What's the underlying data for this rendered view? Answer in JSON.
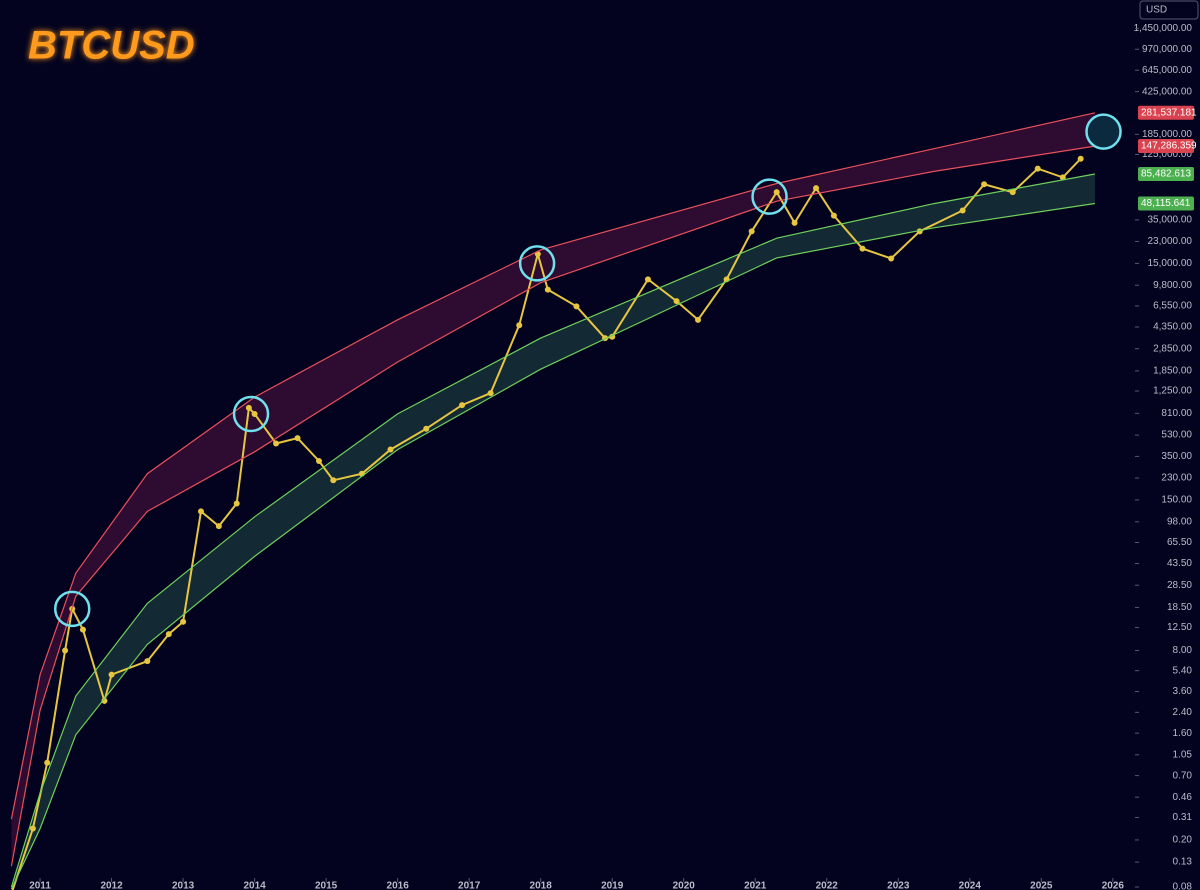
{
  "chart_data": {
    "type": "line",
    "title": "BTCUSD",
    "currency": "USD",
    "log_scale": true,
    "grid": false,
    "xlim": [
      2010.44,
      2026.31
    ],
    "xticks": [
      2011,
      2012,
      2013,
      2014,
      2015,
      2016,
      2017,
      2018,
      2019,
      2020,
      2021,
      2022,
      2023,
      2024,
      2025,
      2026
    ],
    "ylim": [
      0.0755,
      2530000
    ],
    "yticks": [
      {
        "value": 0.08,
        "label": "0.08"
      },
      {
        "value": 0.13,
        "label": "0.13"
      },
      {
        "value": 0.2,
        "label": "0.20"
      },
      {
        "value": 0.31,
        "label": "0.31"
      },
      {
        "value": 0.46,
        "label": "0.46"
      },
      {
        "value": 0.7,
        "label": "0.70"
      },
      {
        "value": 1.05,
        "label": "1.05"
      },
      {
        "value": 1.6,
        "label": "1.60"
      },
      {
        "value": 2.4,
        "label": "2.40"
      },
      {
        "value": 3.6,
        "label": "3.60"
      },
      {
        "value": 5.4,
        "label": "5.40"
      },
      {
        "value": 8,
        "label": "8.00"
      },
      {
        "value": 12.5,
        "label": "12.50"
      },
      {
        "value": 18.5,
        "label": "18.50"
      },
      {
        "value": 28.5,
        "label": "28.50"
      },
      {
        "value": 43.5,
        "label": "43.50"
      },
      {
        "value": 65.5,
        "label": "65.50"
      },
      {
        "value": 98,
        "label": "98.00"
      },
      {
        "value": 150,
        "label": "150.00"
      },
      {
        "value": 230,
        "label": "230.00"
      },
      {
        "value": 350,
        "label": "350.00"
      },
      {
        "value": 530,
        "label": "530.00"
      },
      {
        "value": 810,
        "label": "810.00"
      },
      {
        "value": 1250,
        "label": "1,250.00"
      },
      {
        "value": 1850,
        "label": "1,850.00"
      },
      {
        "value": 2850,
        "label": "2,850.00"
      },
      {
        "value": 4350,
        "label": "4,350.00"
      },
      {
        "value": 6550,
        "label": "6,550.00"
      },
      {
        "value": 9800,
        "label": "9,800.00"
      },
      {
        "value": 15000,
        "label": "15,000.00"
      },
      {
        "value": 23000,
        "label": "23,000.00"
      },
      {
        "value": 35000,
        "label": "35,000.00"
      },
      {
        "value": 125000,
        "label": "125,000.00"
      },
      {
        "value": 185000,
        "label": "185,000.00"
      },
      {
        "value": 425000,
        "label": "425,000.00"
      },
      {
        "value": 645000,
        "label": "645,000.00"
      },
      {
        "value": 970000,
        "label": "970,000.00"
      },
      {
        "value": 1450000,
        "label": "1,450,000.00"
      }
    ],
    "series": [
      {
        "color": "#e6c640",
        "x": [
          2010.6,
          2010.9,
          2011.1,
          2011.35,
          2011.45,
          2011.6,
          2011.9,
          2012.0,
          2012.5,
          2012.8,
          2013.0,
          2013.25,
          2013.5,
          2013.75,
          2013.92,
          2014.0,
          2014.3,
          2014.6,
          2014.9,
          2015.1,
          2015.5,
          2015.9,
          2016.4,
          2016.9,
          2017.3,
          2017.7,
          2017.96,
          2018.1,
          2018.5,
          2018.9,
          2019.0,
          2019.5,
          2019.9,
          2020.2,
          2020.6,
          2020.95,
          2021.3,
          2021.55,
          2021.85,
          2022.1,
          2022.5,
          2022.9,
          2023.3,
          2023.9,
          2024.2,
          2024.6,
          2024.95,
          2025.3,
          2025.55
        ],
        "values": [
          0.07,
          0.25,
          0.9,
          8,
          18,
          12,
          3,
          5,
          6.5,
          11,
          14,
          120,
          90,
          140,
          900,
          800,
          450,
          500,
          320,
          220,
          250,
          400,
          600,
          950,
          1200,
          4500,
          18000,
          9000,
          6500,
          3500,
          3600,
          11000,
          7200,
          5000,
          11000,
          28000,
          60000,
          33000,
          65000,
          38000,
          20000,
          16500,
          28000,
          42000,
          70000,
          60000,
          95000,
          80000,
          115000
        ]
      },
      {
        "color": "#e8505b",
        "x": [
          2010.6,
          2011,
          2011.5,
          2012.5,
          2014,
          2016,
          2018,
          2021.3,
          2023.5,
          2025.75
        ],
        "values": [
          0.3,
          5,
          36,
          250,
          1110,
          5000,
          19500,
          71000,
          140000,
          281537.181
        ],
        "value_labels": [
          null,
          null,
          null,
          null,
          null,
          null,
          null,
          null,
          null,
          "281,537.181"
        ]
      },
      {
        "color": "#e8505b",
        "x": [
          2010.6,
          2011,
          2011.5,
          2012.5,
          2014,
          2016,
          2018,
          2021.3,
          2023.5,
          2025.75
        ],
        "values": [
          0.12,
          2.5,
          23,
          120,
          383,
          2200,
          10300,
          50300,
          90000,
          147286.359
        ],
        "value_labels": [
          null,
          null,
          null,
          null,
          null,
          null,
          null,
          null,
          null,
          "147,286.359"
        ]
      },
      {
        "color": "#6fcf5a",
        "x": [
          2010.6,
          2011,
          2011.5,
          2012.5,
          2014,
          2016,
          2018,
          2021.3,
          2023.5,
          2025.75
        ],
        "values": [
          0.08,
          0.5,
          3.3,
          20,
          108,
          800,
          3500,
          24500,
          48000,
          85482.613
        ],
        "value_labels": [
          null,
          null,
          null,
          null,
          null,
          null,
          null,
          null,
          null,
          "85,482.613"
        ]
      },
      {
        "color": "#6fcf5a",
        "x": [
          2010.6,
          2011,
          2011.5,
          2012.5,
          2014,
          2016,
          2018,
          2021.3,
          2023.5,
          2025.75
        ],
        "values": [
          0.077,
          0.25,
          1.55,
          9,
          50,
          400,
          1910,
          16700,
          30000,
          48115.641
        ],
        "value_labels": [
          null,
          null,
          null,
          null,
          null,
          null,
          null,
          null,
          null,
          "48,115.641"
        ]
      }
    ],
    "highlights": {
      "color": "#6fe0ec",
      "x": [
        2011.45,
        2013.95,
        2017.95,
        2021.2,
        2025.87
      ],
      "y": [
        18,
        800,
        15000,
        55000,
        195000
      ]
    }
  }
}
